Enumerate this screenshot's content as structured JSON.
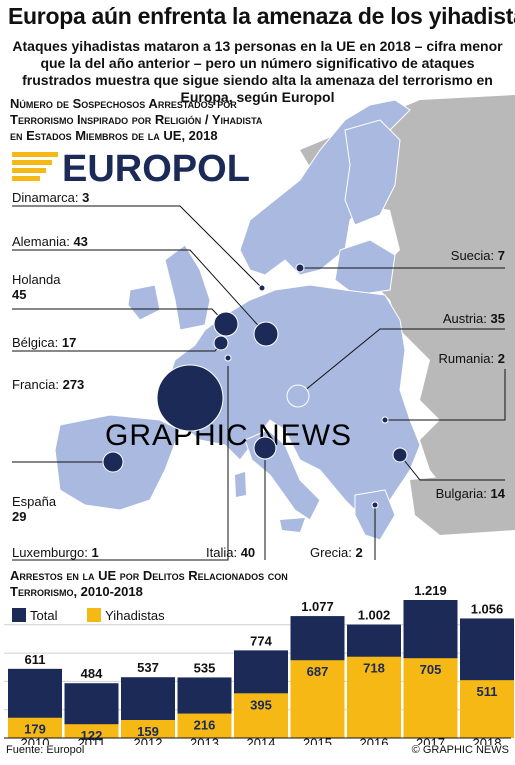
{
  "header": {
    "title": "Europa aún enfrenta la amenaza de los yihadistas",
    "subtitle": "Ataques yihadistas mataron a 13 personas en la UE en 2018 – cifra menor que la del año anterior – pero un número significativo de ataques frustrados muestra que sigue siendo alta la amenaza del terrorismo en Europa, según Europol"
  },
  "map": {
    "title_lines": [
      "Número de Sospechosos Arrestados por",
      "Terrorismo Inspirado por Religión / Yihadista",
      "en Estados Miembros de la UE, 2018"
    ],
    "logo_text": "EUROPOL",
    "watermark": "GRAPHIC NEWS",
    "countries": [
      {
        "name": "Dinamarca",
        "value": "3"
      },
      {
        "name": "Alemania",
        "value": "43"
      },
      {
        "name": "Holanda",
        "value": "45"
      },
      {
        "name": "Bélgica",
        "value": "17"
      },
      {
        "name": "Francia",
        "value": "273"
      },
      {
        "name": "España",
        "value": "29"
      },
      {
        "name": "Luxemburgo",
        "value": "1"
      },
      {
        "name": "Italia",
        "value": "40"
      },
      {
        "name": "Grecia",
        "value": "2"
      },
      {
        "name": "Suecia",
        "value": "7"
      },
      {
        "name": "Austria",
        "value": "35"
      },
      {
        "name": "Rumania",
        "value": "2"
      },
      {
        "name": "Bulgaria",
        "value": "14"
      }
    ]
  },
  "chart_data": {
    "type": "bar",
    "title": "Arrestos en la UE por Delitos Relacionados con Terrorismo, 2010-2018",
    "categories": [
      "2010",
      "2011",
      "2012",
      "2013",
      "2014",
      "2015",
      "2016",
      "2017",
      "2018"
    ],
    "series": [
      {
        "name": "Total",
        "color": "#1b2a57",
        "values": [
          611,
          484,
          537,
          535,
          774,
          1077,
          1002,
          1219,
          1056
        ],
        "labels": [
          "611",
          "484",
          "537",
          "535",
          "774",
          "1.077",
          "1.002",
          "1.219",
          "1.056"
        ]
      },
      {
        "name": "Yihadistas",
        "color": "#f6b815",
        "values": [
          179,
          122,
          159,
          216,
          395,
          687,
          718,
          705,
          511
        ],
        "labels": [
          "179",
          "122",
          "159",
          "216",
          "395",
          "687",
          "718",
          "705",
          "511"
        ]
      }
    ],
    "ylim": [
      0,
      1219
    ]
  },
  "footer": {
    "source": "Fuente: Europol",
    "credit": "© GRAPHIC NEWS"
  },
  "colors": {
    "land": "#a9b9e0",
    "land_dark": "#8ea2d2",
    "non_eu": "#b9b9b9",
    "sea": "#ffffff",
    "navy": "#1b2a57",
    "yellow": "#f6b815"
  }
}
